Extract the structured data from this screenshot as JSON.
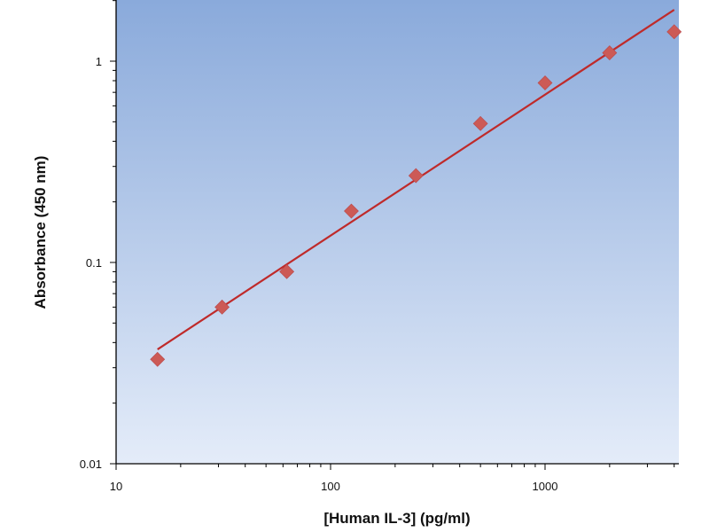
{
  "chart_data": {
    "type": "scatter",
    "title": "",
    "xlabel": "[Human IL-3] (pg/ml)",
    "ylabel": "Absorbance (450 nm)",
    "x_scale": "log",
    "y_scale": "log",
    "xlim": [
      10,
      4000
    ],
    "ylim": [
      0.01,
      2
    ],
    "x_ticks": [
      10,
      100,
      1000
    ],
    "x_tick_labels": [
      "10",
      "100",
      "1000"
    ],
    "y_ticks": [
      0.01,
      0.1,
      1
    ],
    "y_tick_labels": [
      "0.01",
      "0.1",
      "1"
    ],
    "grid": false,
    "legend": "none",
    "series": [
      {
        "kind": "points",
        "marker": "diamond",
        "x": [
          15.6,
          31.2,
          62.5,
          125,
          250,
          500,
          1000,
          2000,
          4000
        ],
        "y": [
          0.033,
          0.06,
          0.09,
          0.18,
          0.27,
          0.49,
          0.78,
          1.1,
          1.4
        ]
      },
      {
        "kind": "fit-line",
        "x": [
          15.6,
          4000
        ],
        "y": [
          0.037,
          1.8
        ]
      }
    ],
    "colors": {
      "marker": "#cc5a56",
      "fit_line": "#bf2a2a",
      "plot_bg_top": "#8aaadb",
      "plot_bg_bottom": "#e4ecf9",
      "axis": "#000000"
    }
  }
}
